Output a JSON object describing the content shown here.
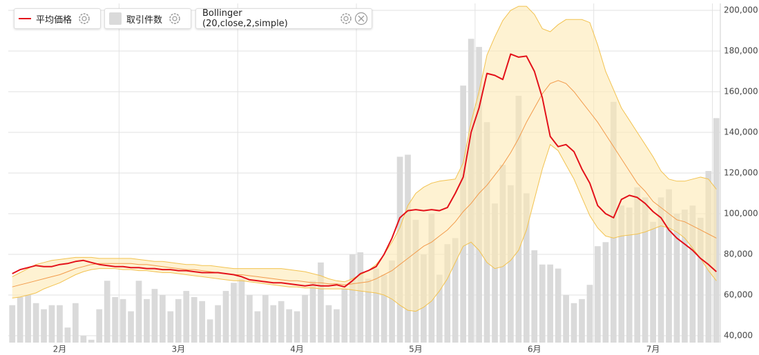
{
  "chart_data": {
    "type": "bollinger",
    "categories": [
      null,
      null,
      null,
      null,
      null,
      null,
      "2月",
      null,
      null,
      null,
      null,
      null,
      null,
      null,
      null,
      null,
      null,
      null,
      null,
      null,
      null,
      "3月",
      null,
      null,
      null,
      null,
      null,
      null,
      null,
      null,
      null,
      null,
      null,
      null,
      null,
      null,
      "4月",
      null,
      null,
      null,
      null,
      null,
      null,
      null,
      null,
      null,
      null,
      null,
      null,
      null,
      null,
      "5月",
      null,
      null,
      null,
      null,
      null,
      null,
      null,
      null,
      null,
      null,
      null,
      null,
      null,
      null,
      "6月",
      null,
      null,
      null,
      null,
      null,
      null,
      null,
      null,
      null,
      null,
      null,
      null,
      null,
      null,
      "7月",
      null,
      null,
      null,
      null,
      null,
      null,
      null,
      null
    ],
    "ylim": [
      36600,
      203400
    ],
    "yticks": [
      {
        "value": 40000,
        "label": "40,000"
      },
      {
        "value": 60000,
        "label": "60,000"
      },
      {
        "value": 80000,
        "label": "80,000"
      },
      {
        "value": 100000,
        "label": "100,000"
      },
      {
        "value": 120000,
        "label": "120,000"
      },
      {
        "value": 140000,
        "label": "140,000"
      },
      {
        "value": 160000,
        "label": "160,000"
      },
      {
        "value": 180000,
        "label": "180,000"
      },
      {
        "value": 200000,
        "label": "200,000"
      }
    ],
    "grid": true,
    "series": [
      {
        "name": "平均価格",
        "type": "line",
        "color": "#e3111a",
        "values": [
          70500,
          72500,
          73500,
          74500,
          74000,
          74000,
          75000,
          75500,
          76500,
          77000,
          76000,
          75000,
          74500,
          74000,
          74000,
          73500,
          73500,
          73000,
          73000,
          72500,
          72500,
          72000,
          72000,
          71500,
          71000,
          71000,
          71000,
          70500,
          70000,
          69000,
          67500,
          67000,
          66500,
          66000,
          66000,
          65500,
          65000,
          64500,
          65000,
          64500,
          64500,
          65000,
          64000,
          67000,
          70500,
          72000,
          74000,
          80000,
          88000,
          98000,
          101500,
          102000,
          101500,
          102000,
          101500,
          103000,
          110000,
          118000,
          140000,
          152000,
          169000,
          168000,
          166000,
          178500,
          177000,
          177500,
          170000,
          157000,
          138000,
          133000,
          134000,
          130500,
          122000,
          115000,
          104000,
          100000,
          98000,
          107000,
          109000,
          108000,
          105000,
          101000,
          98000,
          92000,
          88000,
          85000,
          82000,
          78000,
          75000,
          71500
        ]
      },
      {
        "name": "取引件数",
        "type": "bar",
        "color": "#dadada",
        "values": [
          55000,
          59000,
          60000,
          56000,
          53000,
          55000,
          55000,
          44000,
          56000,
          40000,
          38000,
          53000,
          67000,
          59000,
          58000,
          52000,
          67000,
          58000,
          63000,
          60000,
          52000,
          58000,
          62000,
          59000,
          57000,
          48000,
          55000,
          62000,
          66000,
          68000,
          60000,
          52000,
          60000,
          55000,
          57000,
          53000,
          52000,
          60000,
          67000,
          76000,
          55000,
          53000,
          63000,
          80000,
          81000,
          68000,
          73000,
          70000,
          77000,
          128000,
          129000,
          97000,
          80000,
          100000,
          70000,
          85000,
          88000,
          163000,
          186000,
          182000,
          145000,
          105000,
          124000,
          114000,
          158000,
          110000,
          82000,
          75000,
          75000,
          73000,
          60000,
          56000,
          58000,
          65000,
          84000,
          86000,
          155000,
          104000,
          103000,
          113000,
          108000,
          96000,
          108000,
          112000,
          100000,
          102000,
          104000,
          98000,
          121000,
          147000
        ]
      },
      {
        "name": "Bollinger (20,close,2,simple)",
        "type": "band",
        "color": "#f2c24f",
        "middle_color": "#f29a4a",
        "fill": "#fde9b4",
        "upper": [
          69000,
          71000,
          73000,
          75000,
          76000,
          77000,
          77500,
          78000,
          78500,
          78500,
          78500,
          78000,
          78000,
          78000,
          78000,
          78000,
          77500,
          77000,
          76500,
          76500,
          76000,
          75500,
          75000,
          75000,
          74500,
          74500,
          74000,
          73500,
          73000,
          73000,
          73000,
          73000,
          73000,
          73000,
          73000,
          72500,
          72000,
          71500,
          70500,
          69500,
          68000,
          67000,
          66500,
          68000,
          70000,
          72000,
          75000,
          80000,
          86000,
          93000,
          104000,
          110000,
          113000,
          115000,
          116000,
          116500,
          117000,
          125000,
          145000,
          160000,
          178000,
          187000,
          195000,
          200000,
          202000,
          202000,
          198000,
          191000,
          189500,
          193000,
          195500,
          195500,
          195500,
          194000,
          183000,
          170000,
          161000,
          152000,
          146000,
          140000,
          134000,
          128000,
          121000,
          117000,
          116000,
          116000,
          117000,
          118000,
          117000,
          112000
        ],
        "middle": [
          64000,
          65000,
          66000,
          67000,
          68000,
          69000,
          70000,
          71500,
          73000,
          74000,
          75000,
          75500,
          75500,
          75500,
          75500,
          75500,
          75000,
          75000,
          74500,
          74000,
          73500,
          73000,
          72500,
          72500,
          72000,
          71500,
          71000,
          70500,
          70000,
          70000,
          69500,
          69000,
          68500,
          68000,
          67500,
          67000,
          67000,
          66500,
          66000,
          66000,
          65500,
          65500,
          65000,
          65500,
          66000,
          66500,
          68000,
          70000,
          72000,
          75000,
          78000,
          81000,
          84000,
          86000,
          89000,
          92000,
          96000,
          101000,
          105000,
          110000,
          114000,
          119000,
          124000,
          130000,
          137000,
          145000,
          152000,
          159000,
          164000,
          165500,
          164000,
          160000,
          155000,
          150000,
          145000,
          139000,
          133000,
          127000,
          121000,
          115000,
          111000,
          106000,
          103000,
          100000,
          97000,
          96000,
          94000,
          92000,
          90000,
          88000
        ],
        "lower": [
          58500,
          59000,
          60000,
          61000,
          63000,
          64500,
          66000,
          68000,
          70000,
          71500,
          72500,
          73000,
          73000,
          73000,
          72500,
          72500,
          72000,
          72000,
          71500,
          71000,
          71000,
          70500,
          70000,
          69500,
          69000,
          68500,
          68000,
          67500,
          67000,
          67000,
          66500,
          66000,
          65500,
          65000,
          64500,
          64000,
          64000,
          63500,
          63500,
          63000,
          63000,
          63000,
          63000,
          62500,
          62000,
          61500,
          61000,
          60000,
          58000,
          55000,
          52500,
          52000,
          54000,
          57000,
          62000,
          68000,
          76000,
          84000,
          86000,
          82000,
          76000,
          73000,
          74000,
          77000,
          82000,
          92000,
          107000,
          122000,
          134000,
          131000,
          124000,
          117000,
          108000,
          99000,
          93000,
          89000,
          88000,
          89000,
          89500,
          90000,
          91000,
          92500,
          94000,
          93000,
          91000,
          88000,
          83000,
          78000,
          72000,
          67000
        ]
      }
    ]
  }
}
